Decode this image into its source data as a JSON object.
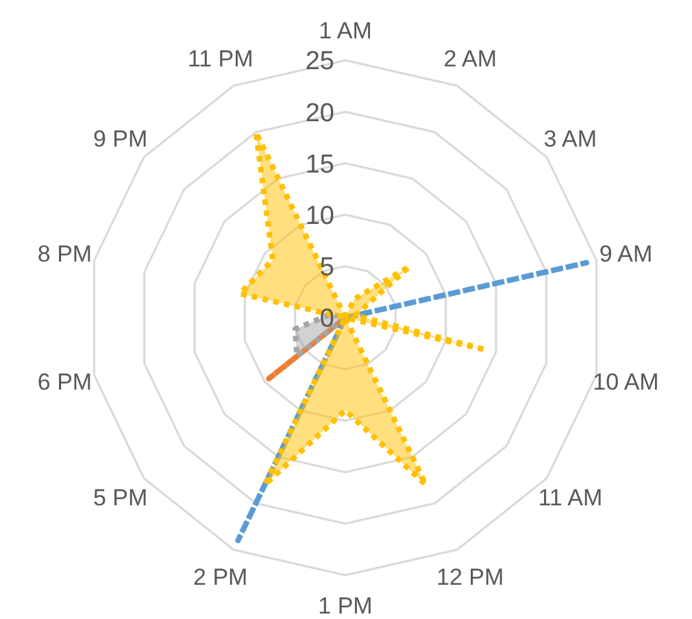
{
  "chart_data": {
    "type": "radar",
    "categories": [
      "1 AM",
      "2 AM",
      "3 AM",
      "9 AM",
      "10 AM",
      "11 AM",
      "12 PM",
      "1 PM",
      "2 PM",
      "5 PM",
      "6 PM",
      "8 PM",
      "9 PM",
      "11 PM"
    ],
    "ylim": [
      0,
      25
    ],
    "yticks": [
      0,
      5,
      10,
      15,
      20,
      25
    ],
    "grid": true,
    "series": [
      {
        "color": "#5b9bd5",
        "line_style": "dashed",
        "values": [
          0,
          0,
          0,
          24,
          0,
          0,
          0,
          0,
          24,
          0,
          0,
          0,
          0,
          0
        ]
      },
      {
        "color": "#ed7d31",
        "line_style": "dashed",
        "values": [
          0,
          0,
          0,
          0,
          0,
          0,
          0,
          0,
          0,
          9.5,
          0,
          0,
          0,
          0
        ]
      },
      {
        "color": "#a5a5a5",
        "line_style": "dotted",
        "values": [
          0,
          0,
          0,
          0,
          0,
          0,
          0,
          0,
          0,
          6,
          5,
          1.5,
          0,
          0
        ]
      },
      {
        "color": "#ffc000",
        "line_style": "dotted",
        "values": [
          0,
          2,
          8,
          1,
          14,
          0,
          18,
          9,
          18,
          0,
          0,
          10.5,
          9,
          20
        ]
      }
    ]
  }
}
